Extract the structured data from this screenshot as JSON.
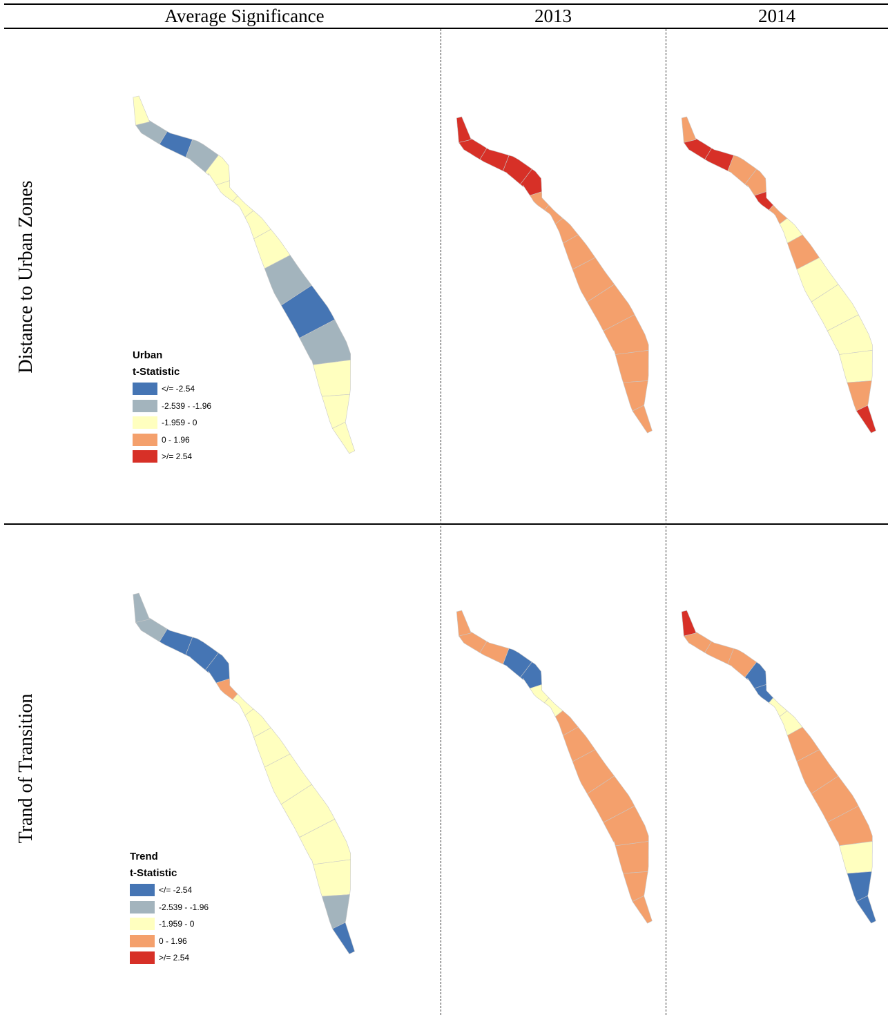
{
  "columns": [
    "Average Significance",
    "2013",
    "2014"
  ],
  "rows": [
    {
      "label": "Distance to Urban Zones",
      "legend": {
        "title": "Urban",
        "subtitle": "t-Statistic"
      }
    },
    {
      "label": "Trand of Transition",
      "legend": {
        "title": "Trend",
        "subtitle": "t-Statistic"
      }
    }
  ],
  "classes": [
    {
      "label": "</= -2.54",
      "color": "#4575b4"
    },
    {
      "label": "-2.539 - -1.96",
      "color": "#a3b4bd"
    },
    {
      "label": "-1.959 - 0",
      "color": "#ffffbf"
    },
    {
      "label": "0 - 1.96",
      "color": "#f4a06c"
    },
    {
      "label": ">/= 2.54",
      "color": "#d73027"
    }
  ],
  "maps": [
    {
      "row": 0,
      "col": 0,
      "segments": [
        2,
        1,
        0,
        1,
        2,
        2,
        2,
        2,
        2,
        1,
        0,
        1,
        2,
        2,
        2
      ]
    },
    {
      "row": 0,
      "col": 1,
      "segments": [
        4,
        4,
        4,
        4,
        4,
        3,
        3,
        3,
        3,
        3,
        3,
        3,
        3,
        3,
        3
      ]
    },
    {
      "row": 0,
      "col": 2,
      "segments": [
        3,
        4,
        4,
        3,
        3,
        4,
        3,
        2,
        3,
        2,
        2,
        2,
        2,
        3,
        4
      ]
    },
    {
      "row": 1,
      "col": 0,
      "segments": [
        1,
        1,
        0,
        0,
        0,
        3,
        2,
        2,
        2,
        2,
        2,
        2,
        2,
        1,
        0
      ]
    },
    {
      "row": 1,
      "col": 1,
      "segments": [
        3,
        3,
        3,
        0,
        0,
        2,
        2,
        3,
        3,
        3,
        3,
        3,
        3,
        3,
        3
      ]
    },
    {
      "row": 1,
      "col": 2,
      "segments": [
        4,
        3,
        3,
        3,
        0,
        0,
        2,
        2,
        3,
        3,
        3,
        3,
        2,
        0,
        0
      ]
    }
  ]
}
